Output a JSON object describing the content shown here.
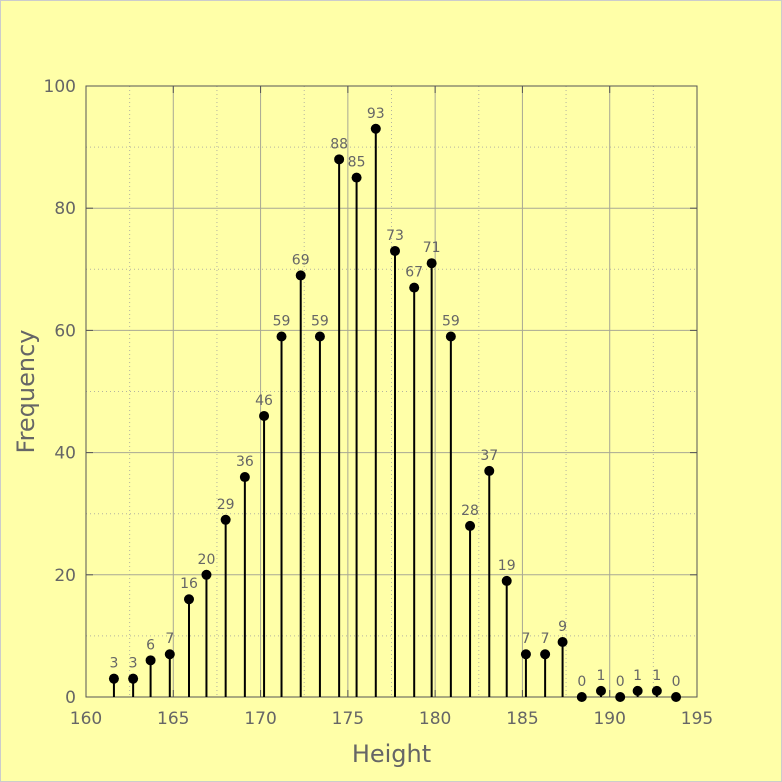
{
  "chart_data": {
    "type": "stem",
    "title": "",
    "xlabel": "Height",
    "ylabel": "Frequency",
    "xlim": [
      160,
      195
    ],
    "ylim": [
      0,
      100
    ],
    "xticks": [
      160,
      165,
      170,
      175,
      180,
      185,
      190,
      195
    ],
    "yticks": [
      0,
      20,
      40,
      60,
      80,
      100
    ],
    "grid": true,
    "x": [
      161.6,
      162.7,
      163.7,
      164.8,
      165.9,
      166.9,
      168.0,
      169.1,
      170.2,
      171.2,
      172.3,
      173.4,
      174.5,
      175.5,
      176.6,
      177.7,
      178.8,
      179.8,
      180.9,
      182.0,
      183.1,
      184.1,
      185.2,
      186.3,
      187.3,
      188.4,
      189.5,
      190.6,
      191.6,
      192.7,
      193.8
    ],
    "values": [
      3,
      3,
      6,
      7,
      16,
      20,
      29,
      36,
      46,
      59,
      69,
      59,
      88,
      85,
      93,
      73,
      67,
      71,
      59,
      28,
      37,
      19,
      7,
      7,
      9,
      0,
      1,
      0,
      1,
      1,
      0
    ],
    "data_labels": [
      "3",
      "3",
      "6",
      "7",
      "16",
      "20",
      "29",
      "36",
      "46",
      "59",
      "69",
      "59",
      "88",
      "85",
      "93",
      "73",
      "67",
      "71",
      "59",
      "28",
      "37",
      "19",
      "7",
      "7",
      "9",
      "0",
      "1",
      "0",
      "1",
      "1",
      "0"
    ],
    "colors": {
      "background": "#ffffa8",
      "marker": "#000000",
      "grid": "#999999",
      "text": "#666666"
    }
  }
}
